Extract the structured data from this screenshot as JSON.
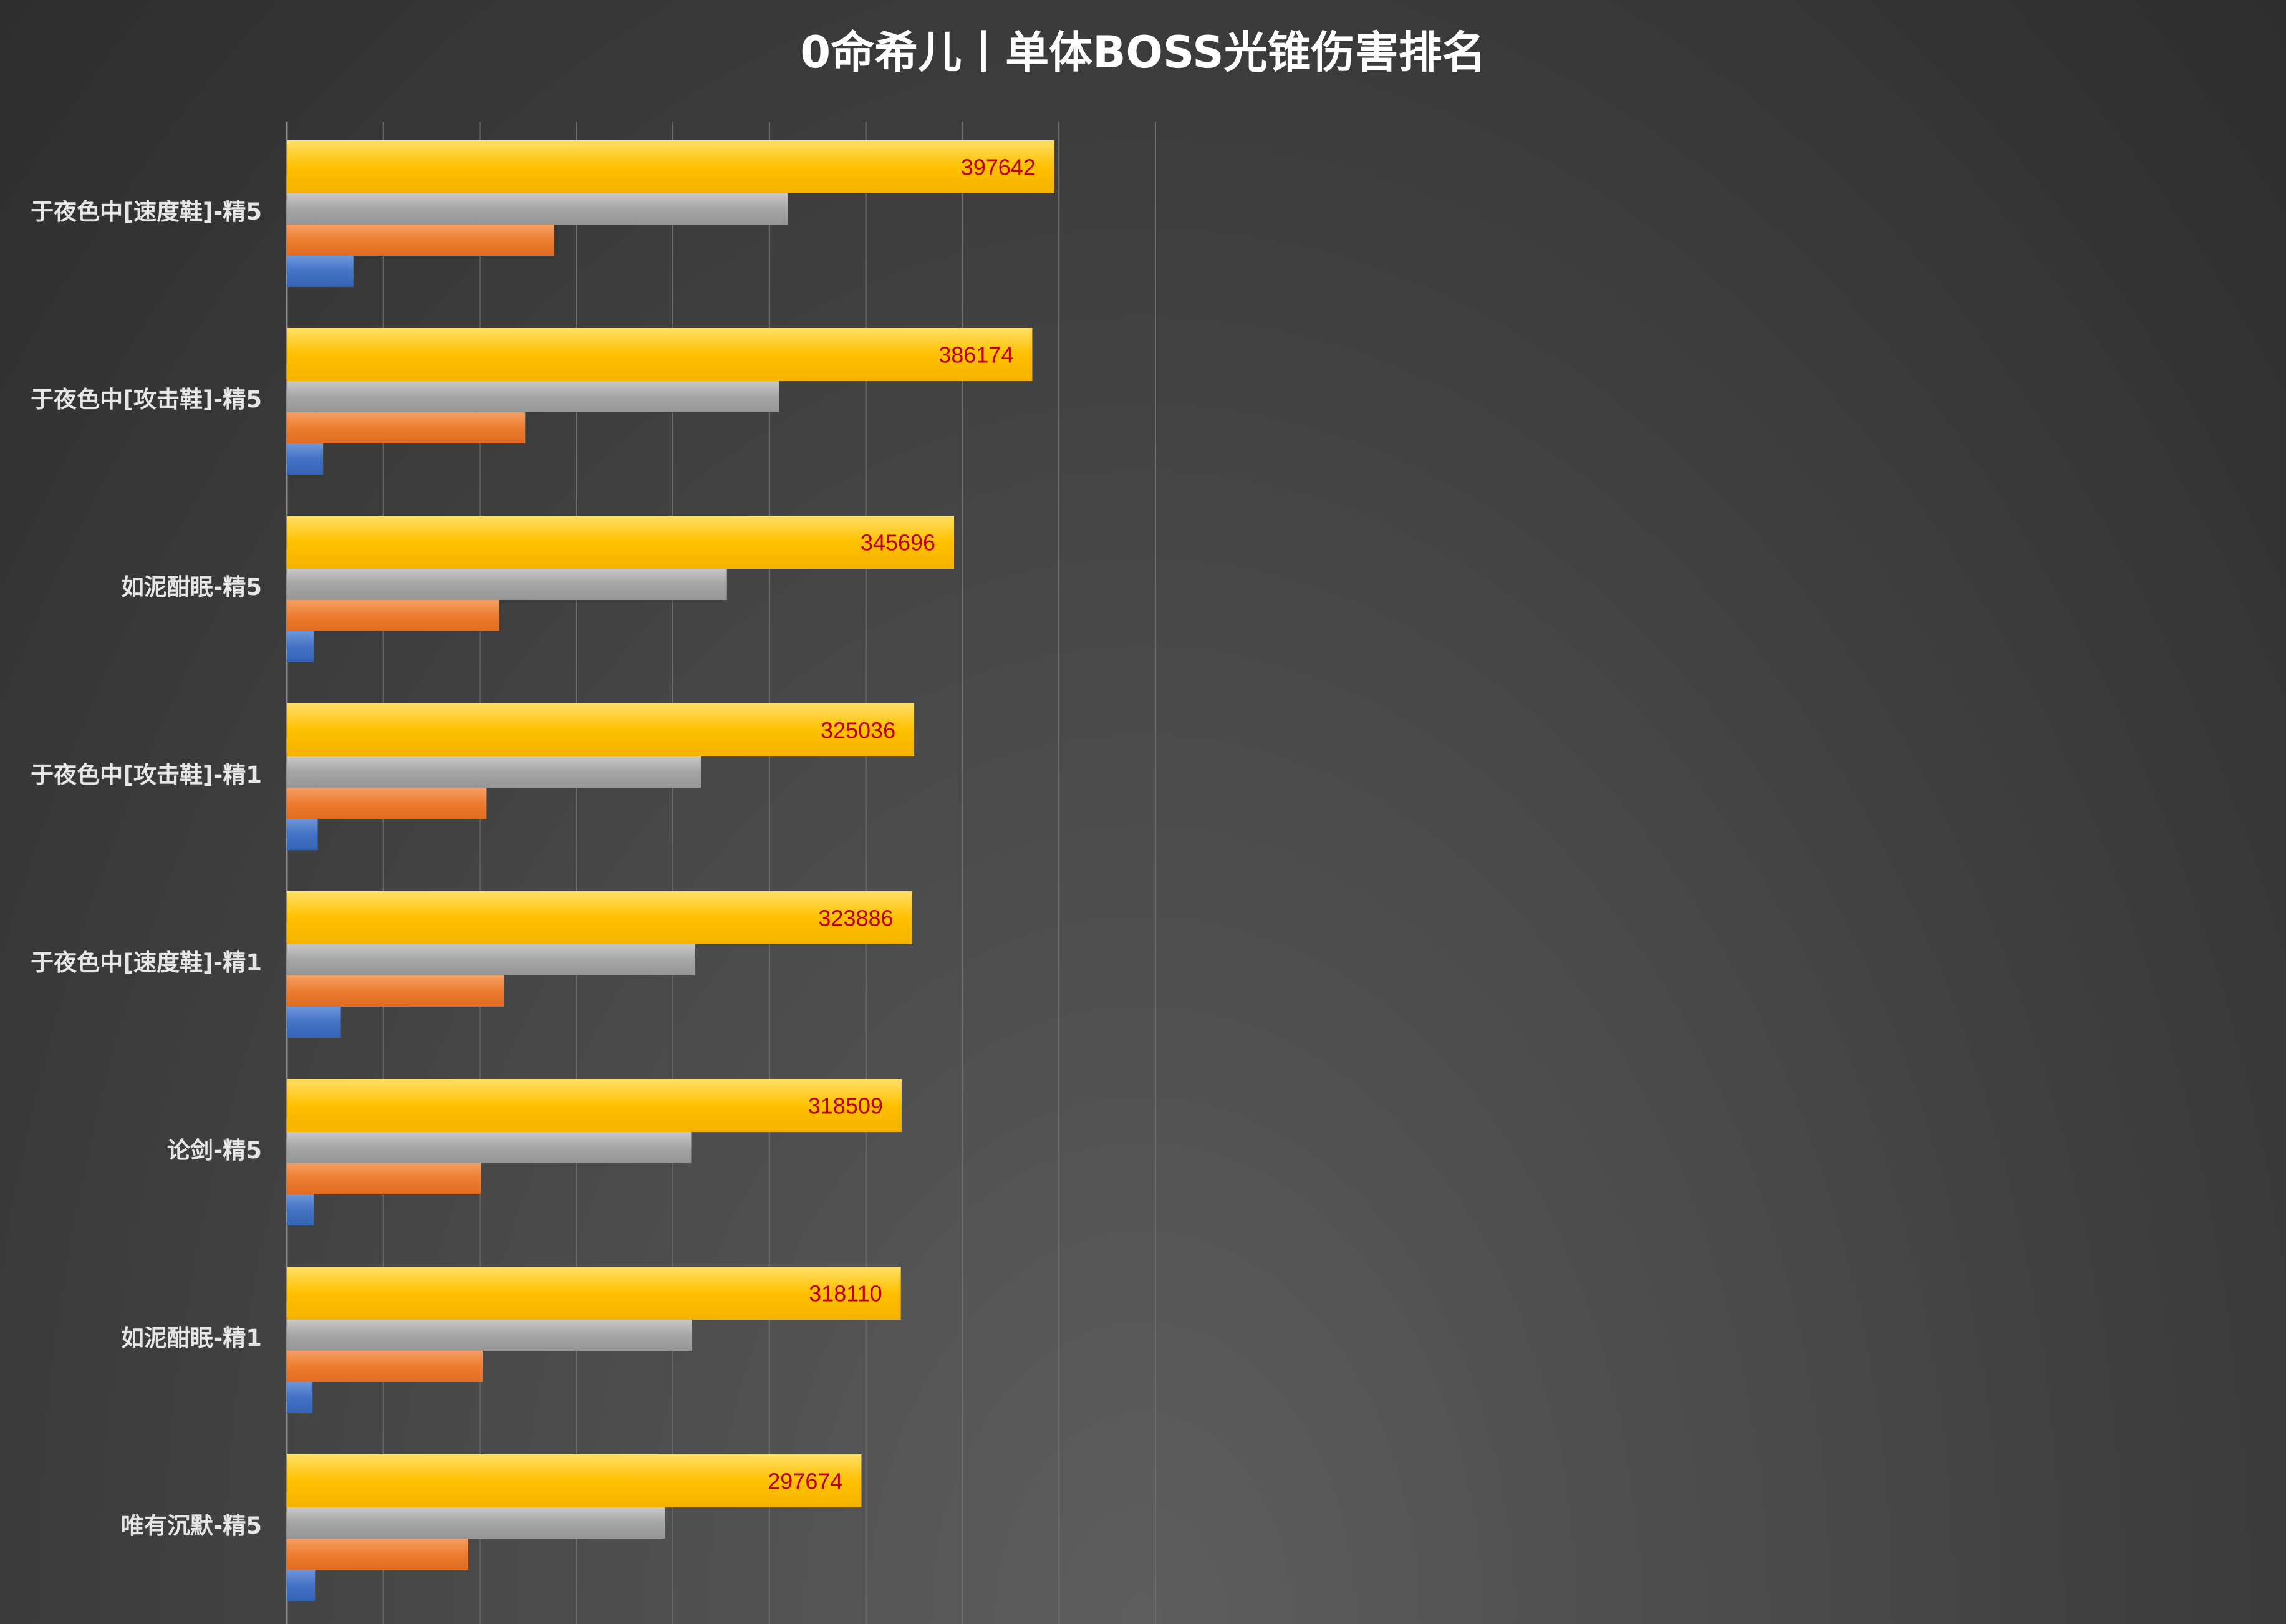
{
  "chart_data": {
    "type": "bar",
    "orientation": "horizontal",
    "title": "0命希儿丨单体BOSS光锥伤害排名",
    "xlabel": "",
    "ylabel": "",
    "xlim": [
      0,
      450000
    ],
    "grid": true,
    "legend": "none",
    "categories": [
      "于夜色中[速度鞋]-精5",
      "于夜色中[攻击鞋]-精5",
      "如泥酣眠-精5",
      "于夜色中[攻击鞋]-精1",
      "于夜色中[速度鞋]-精1",
      "论剑-精5",
      "如泥酣眠-精1",
      "唯有沉默-精5"
    ],
    "series": [
      {
        "color": "#ffc000",
        "values": [
          397642,
          386174,
          345696,
          325036,
          323886,
          318509,
          318110,
          297674
        ],
        "data_labels": true
      },
      {
        "color": "#a5a5a5",
        "values": [
          259500,
          255000,
          228000,
          214500,
          211500,
          209500,
          210000,
          196000
        ],
        "data_labels": false
      },
      {
        "color": "#ed7d31",
        "values": [
          138500,
          123500,
          110000,
          103500,
          112500,
          100500,
          101500,
          94000
        ],
        "data_labels": false
      },
      {
        "color": "#4472c4",
        "values": [
          34500,
          18800,
          14000,
          16000,
          28000,
          14000,
          13300,
          14600
        ],
        "data_labels": false
      }
    ]
  }
}
